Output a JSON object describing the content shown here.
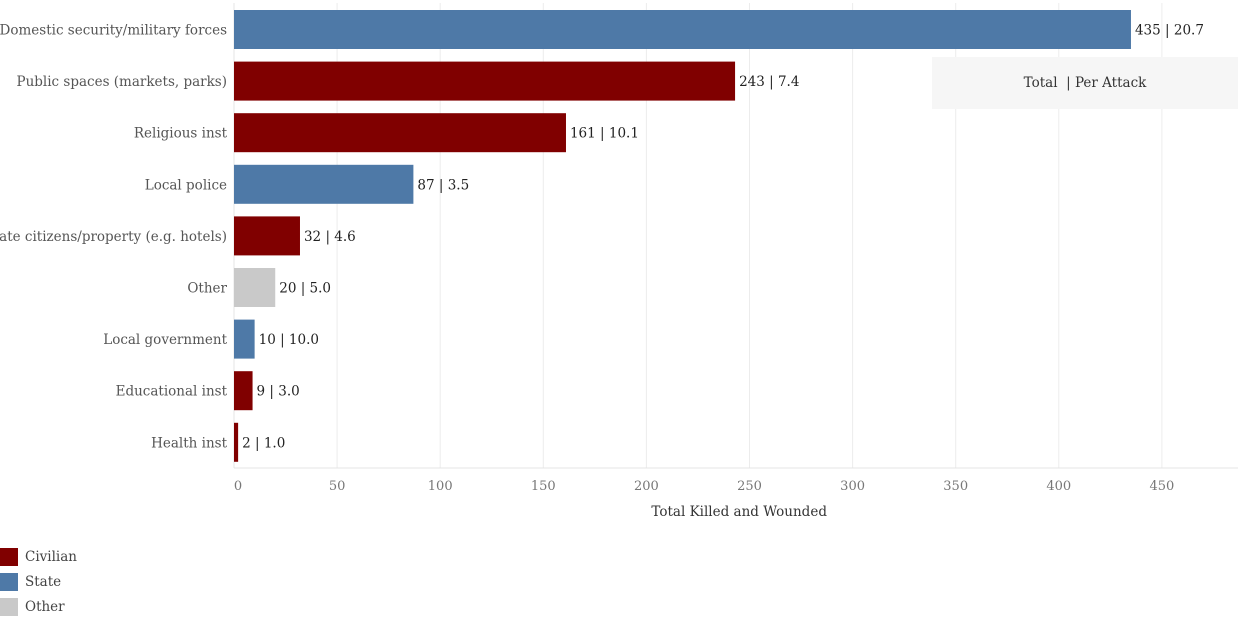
{
  "chart_data": {
    "type": "bar",
    "orientation": "horizontal",
    "xlabel": "Total Killed and Wounded",
    "xlim": [
      0,
      485
    ],
    "xticks": [
      0,
      50,
      100,
      150,
      200,
      250,
      300,
      350,
      400,
      450
    ],
    "grid": true,
    "header": "Total  | Per Attack",
    "bars": [
      {
        "category": "Domestic security/military forces",
        "value": 435,
        "per_attack": "20.7",
        "group": "State"
      },
      {
        "category": "Public spaces (markets, parks)",
        "value": 243,
        "per_attack": "7.4",
        "group": "Civilian"
      },
      {
        "category": "Religious inst",
        "value": 161,
        "per_attack": "10.1",
        "group": "Civilian"
      },
      {
        "category": "Local police",
        "value": 87,
        "per_attack": "3.5",
        "group": "State"
      },
      {
        "category": "Private citizens/property (e.g. hotels)",
        "value": 32,
        "per_attack": "4.6",
        "group": "Civilian"
      },
      {
        "category": "Other",
        "value": 20,
        "per_attack": "5.0",
        "group": "Other"
      },
      {
        "category": "Local government",
        "value": 10,
        "per_attack": "10.0",
        "group": "State"
      },
      {
        "category": "Educational inst",
        "value": 9,
        "per_attack": "3.0",
        "group": "Civilian"
      },
      {
        "category": "Health inst",
        "value": 2,
        "per_attack": "1.0",
        "group": "Civilian"
      }
    ],
    "legend": {
      "placement": "bottom-left",
      "items": [
        {
          "name": "Civilian",
          "color": "#800000"
        },
        {
          "name": "State",
          "color": "#4e79a7"
        },
        {
          "name": "Other",
          "color": "#c9c9c9"
        }
      ]
    }
  }
}
